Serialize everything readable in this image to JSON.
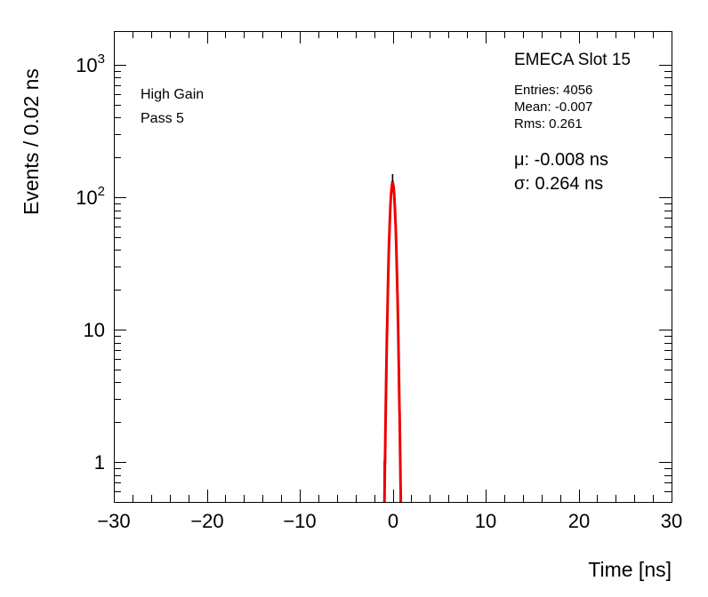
{
  "annotations": {
    "left_labels": [
      "High Gain",
      "Pass 5"
    ],
    "corner_label": "EMECA Slot 15",
    "stats": [
      "Entries: 4056",
      "Mean: -0.007",
      "Rms: 0.261"
    ],
    "fit_labels": [
      "μ: -0.008 ns",
      "σ: 0.264 ns"
    ]
  },
  "chart_data": {
    "type": "histogram",
    "title": "",
    "xlabel": "Time [ns]",
    "ylabel": "Events / 0.02 ns",
    "legend": "none",
    "grid": false,
    "x_axis": {
      "min": -30,
      "max": 30,
      "major_ticks": [
        -30,
        -20,
        -10,
        0,
        10,
        20,
        30
      ],
      "major_labels": [
        "−30",
        "−20",
        "−10",
        "0",
        "10",
        "20",
        "30"
      ],
      "minor_step": 2
    },
    "y_axis": {
      "scale": "log",
      "min": 0.5,
      "max": 1800,
      "major_ticks": [
        {
          "value": 1,
          "label": "1"
        },
        {
          "value": 10,
          "label": "10"
        },
        {
          "value": 100,
          "label": "10^2"
        },
        {
          "value": 1000,
          "label": "10^3"
        }
      ]
    },
    "histogram": {
      "bin_width": 0.02,
      "range": [
        -1.2,
        1.2
      ],
      "entries": 4056,
      "mean": -0.007,
      "rms": 0.261,
      "peak_count": 148,
      "visible_extent_ns": [
        -0.9,
        0.9
      ],
      "color": "#000000"
    },
    "fit": {
      "type": "gaussian",
      "mu": -0.008,
      "sigma": 0.264,
      "amplitude": 128,
      "color": "#ee0000"
    },
    "stats": {
      "entries": 4056,
      "mean": -0.007,
      "rms": 0.261,
      "fit_mu_ns": -0.008,
      "fit_sigma_ns": 0.264
    }
  }
}
